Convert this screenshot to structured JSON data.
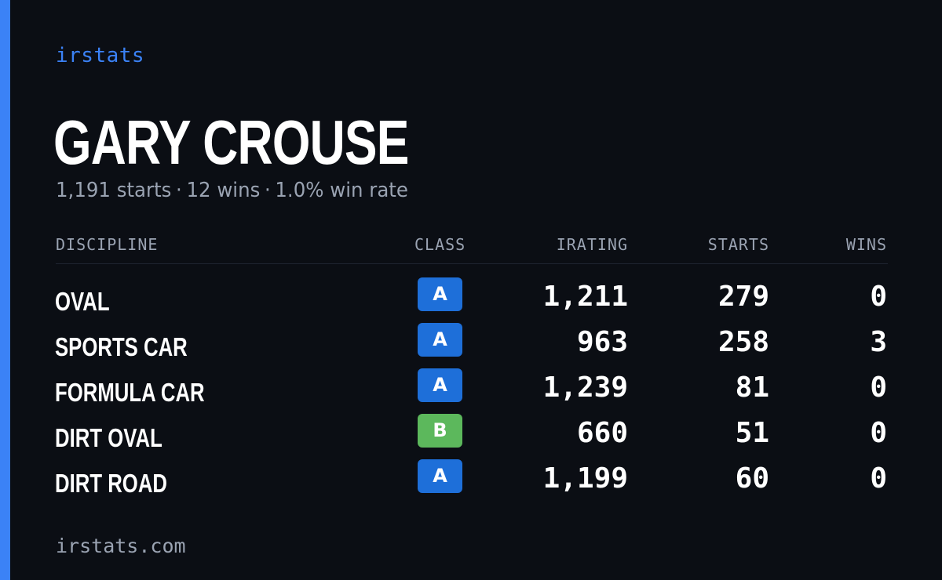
{
  "brand": "irstats",
  "driver_name": "GARY CROUSE",
  "summary": {
    "starts": "1,191 starts",
    "wins": "12 wins",
    "win_rate": "1.0% win rate",
    "separator": "·"
  },
  "columns": {
    "discipline": "DISCIPLINE",
    "class": "CLASS",
    "irating": "IRATING",
    "starts": "STARTS",
    "wins": "WINS"
  },
  "rows": [
    {
      "discipline": "OVAL",
      "class": "A",
      "irating": "1,211",
      "starts": "279",
      "wins": "0"
    },
    {
      "discipline": "SPORTS CAR",
      "class": "A",
      "irating": "963",
      "starts": "258",
      "wins": "3"
    },
    {
      "discipline": "FORMULA CAR",
      "class": "A",
      "irating": "1,239",
      "starts": "81",
      "wins": "0"
    },
    {
      "discipline": "DIRT OVAL",
      "class": "B",
      "irating": "660",
      "starts": "51",
      "wins": "0"
    },
    {
      "discipline": "DIRT ROAD",
      "class": "A",
      "irating": "1,199",
      "starts": "60",
      "wins": "0"
    }
  ],
  "footer": "irstats.com",
  "colors": {
    "accent": "#3b82f6",
    "class_a": "#1e6fd9",
    "class_b": "#5cb85c",
    "background": "#0b0e14"
  }
}
